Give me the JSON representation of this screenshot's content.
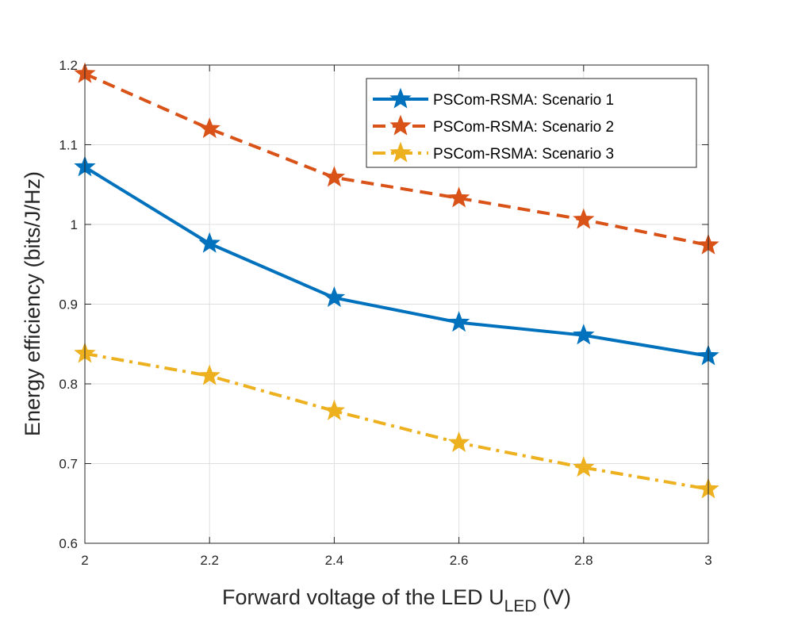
{
  "chart_data": {
    "type": "line",
    "title": "",
    "xlabel": "Forward voltage of the LED U",
    "xlabel_subscript": "LED",
    "xlabel_suffix": " (V)",
    "ylabel": "Energy efficiency (bits/J/Hz)",
    "x": [
      2,
      2.2,
      2.4,
      2.6,
      2.8,
      3
    ],
    "xlim": [
      2,
      3
    ],
    "ylim": [
      0.6,
      1.2
    ],
    "xticks": [
      "2",
      "2.2",
      "2.4",
      "2.6",
      "2.8",
      "3"
    ],
    "yticks": [
      "0.6",
      "0.7",
      "0.8",
      "0.9",
      "1",
      "1.1",
      "1.2"
    ],
    "grid": true,
    "legend_position": "top-right",
    "series": [
      {
        "name": "PSCom-RSMA: Scenario 1",
        "values": [
          1.072,
          0.976,
          0.908,
          0.877,
          0.861,
          0.835
        ],
        "color": "#0072BD",
        "dash": "solid",
        "marker": "star"
      },
      {
        "name": "PSCom-RSMA: Scenario 2",
        "values": [
          1.189,
          1.12,
          1.059,
          1.033,
          1.006,
          0.974
        ],
        "color": "#D95319",
        "dash": "dashed",
        "marker": "star"
      },
      {
        "name": "PSCom-RSMA: Scenario 3",
        "values": [
          0.838,
          0.81,
          0.766,
          0.726,
          0.695,
          0.668
        ],
        "color": "#EDB120",
        "dash": "dashdot",
        "marker": "star"
      }
    ]
  }
}
